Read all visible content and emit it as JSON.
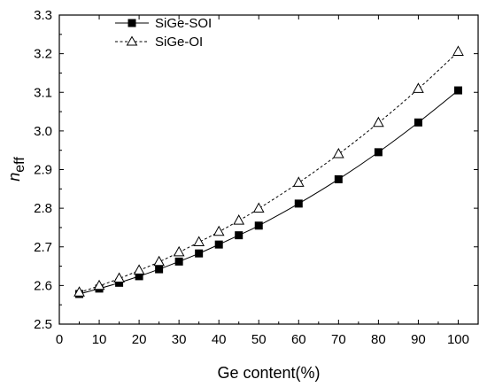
{
  "chart_data": {
    "type": "line",
    "xlabel": "Ge content(%)",
    "ylabel_main": "n",
    "ylabel_sub": "eff",
    "xlim": [
      0,
      105
    ],
    "ylim": [
      2.5,
      3.3
    ],
    "xticks": [
      0,
      10,
      20,
      30,
      40,
      50,
      60,
      70,
      80,
      90,
      100
    ],
    "yticks": [
      2.5,
      2.6,
      2.7,
      2.8,
      2.9,
      3.0,
      3.1,
      3.2,
      3.3
    ],
    "ytick_labels": [
      "2.5",
      "2.6",
      "2.7",
      "2.8",
      "2.9",
      "3.0",
      "3.1",
      "3.2",
      "3.3"
    ],
    "grid": false,
    "legend_position": "top-left",
    "x": [
      5,
      10,
      15,
      20,
      25,
      30,
      35,
      40,
      45,
      50,
      60,
      70,
      80,
      90,
      100
    ],
    "series": [
      {
        "name": "SiGe-SOI",
        "line": "solid",
        "marker": "filled-square",
        "color": "#000000",
        "values": [
          2.578,
          2.592,
          2.607,
          2.624,
          2.642,
          2.662,
          2.683,
          2.706,
          2.73,
          2.755,
          2.812,
          2.875,
          2.945,
          3.022,
          3.105
        ]
      },
      {
        "name": "SiGe-OI",
        "line": "dashed",
        "marker": "open-triangle",
        "color": "#000000",
        "values": [
          2.582,
          2.599,
          2.618,
          2.639,
          2.661,
          2.686,
          2.712,
          2.739,
          2.768,
          2.799,
          2.866,
          2.94,
          3.021,
          3.109,
          3.205
        ]
      }
    ]
  }
}
